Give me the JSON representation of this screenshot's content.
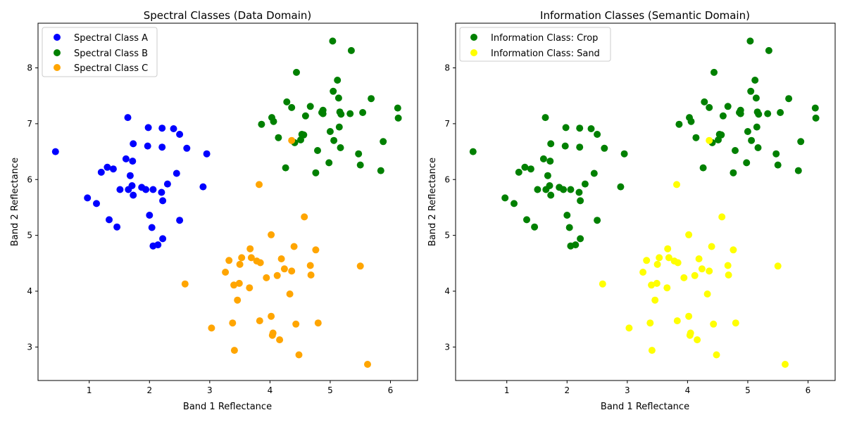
{
  "chart_data": [
    {
      "type": "scatter",
      "title": "Spectral Classes (Data Domain)",
      "xlabel": "Band 1 Reflectance",
      "ylabel": "Band 2 Reflectance",
      "xlim": [
        0.15,
        6.45
      ],
      "ylim": [
        2.4,
        8.8
      ],
      "xticks": [
        1,
        2,
        3,
        4,
        5,
        6
      ],
      "yticks": [
        3,
        4,
        5,
        6,
        7,
        8
      ],
      "grid": false,
      "legend_position": "top-left",
      "series": [
        {
          "name": "Spectral Class A",
          "color": "#0000ff",
          "points": [
            [
              0.44,
              6.5
            ],
            [
              0.97,
              5.67
            ],
            [
              1.12,
              5.57
            ],
            [
              1.2,
              6.13
            ],
            [
              1.3,
              6.22
            ],
            [
              1.33,
              5.28
            ],
            [
              1.4,
              6.19
            ],
            [
              1.46,
              5.15
            ],
            [
              1.51,
              5.82
            ],
            [
              1.61,
              6.37
            ],
            [
              1.64,
              7.11
            ],
            [
              1.65,
              5.82
            ],
            [
              1.68,
              6.07
            ],
            [
              1.71,
              5.89
            ],
            [
              1.72,
              6.33
            ],
            [
              1.73,
              6.64
            ],
            [
              1.73,
              5.72
            ],
            [
              1.87,
              5.86
            ],
            [
              1.94,
              5.82
            ],
            [
              1.97,
              6.6
            ],
            [
              1.98,
              6.93
            ],
            [
              2.0,
              5.36
            ],
            [
              2.04,
              5.14
            ],
            [
              2.06,
              5.82
            ],
            [
              2.06,
              4.81
            ],
            [
              2.14,
              4.83
            ],
            [
              2.2,
              5.77
            ],
            [
              2.21,
              6.58
            ],
            [
              2.21,
              6.92
            ],
            [
              2.22,
              4.94
            ],
            [
              2.22,
              5.62
            ],
            [
              2.3,
              5.92
            ],
            [
              2.4,
              6.91
            ],
            [
              2.45,
              6.11
            ],
            [
              2.5,
              5.27
            ],
            [
              2.5,
              6.81
            ],
            [
              2.62,
              6.56
            ],
            [
              2.89,
              5.87
            ],
            [
              2.95,
              6.46
            ]
          ]
        },
        {
          "name": "Spectral Class B",
          "color": "#008000",
          "points": [
            [
              3.86,
              6.99
            ],
            [
              4.03,
              7.11
            ],
            [
              4.06,
              7.04
            ],
            [
              4.14,
              6.75
            ],
            [
              4.26,
              6.21
            ],
            [
              4.28,
              7.39
            ],
            [
              4.36,
              7.29
            ],
            [
              4.41,
              6.66
            ],
            [
              4.44,
              7.92
            ],
            [
              4.51,
              6.71
            ],
            [
              4.53,
              6.81
            ],
            [
              4.56,
              6.8
            ],
            [
              4.59,
              7.14
            ],
            [
              4.67,
              7.31
            ],
            [
              4.76,
              6.12
            ],
            [
              4.79,
              6.52
            ],
            [
              4.86,
              7.2
            ],
            [
              4.88,
              7.24
            ],
            [
              4.88,
              7.18
            ],
            [
              4.98,
              6.3
            ],
            [
              5.0,
              6.86
            ],
            [
              5.04,
              8.48
            ],
            [
              5.05,
              7.58
            ],
            [
              5.06,
              6.7
            ],
            [
              5.12,
              7.78
            ],
            [
              5.14,
              7.46
            ],
            [
              5.15,
              6.94
            ],
            [
              5.16,
              7.21
            ],
            [
              5.17,
              6.57
            ],
            [
              5.18,
              7.17
            ],
            [
              5.33,
              7.18
            ],
            [
              5.35,
              8.31
            ],
            [
              5.47,
              6.46
            ],
            [
              5.5,
              6.26
            ],
            [
              5.54,
              7.2
            ],
            [
              5.68,
              7.45
            ],
            [
              5.84,
              6.16
            ],
            [
              5.88,
              6.68
            ],
            [
              6.12,
              7.28
            ],
            [
              6.13,
              7.1
            ]
          ]
        },
        {
          "name": "Spectral Class C",
          "color": "#ffa500",
          "points": [
            [
              2.59,
              4.13
            ],
            [
              3.03,
              3.34
            ],
            [
              3.26,
              4.34
            ],
            [
              3.32,
              4.55
            ],
            [
              3.38,
              3.43
            ],
            [
              3.4,
              4.11
            ],
            [
              3.41,
              2.94
            ],
            [
              3.46,
              3.84
            ],
            [
              3.49,
              4.14
            ],
            [
              3.5,
              4.48
            ],
            [
              3.53,
              4.6
            ],
            [
              3.66,
              4.06
            ],
            [
              3.67,
              4.76
            ],
            [
              3.69,
              4.6
            ],
            [
              3.78,
              4.54
            ],
            [
              3.82,
              5.91
            ],
            [
              3.83,
              3.47
            ],
            [
              3.84,
              4.51
            ],
            [
              3.94,
              4.24
            ],
            [
              4.02,
              3.55
            ],
            [
              4.02,
              5.01
            ],
            [
              4.04,
              3.21
            ],
            [
              4.05,
              3.25
            ],
            [
              4.12,
              4.28
            ],
            [
              4.16,
              3.13
            ],
            [
              4.19,
              4.58
            ],
            [
              4.24,
              4.4
            ],
            [
              4.33,
              3.95
            ],
            [
              4.36,
              6.7
            ],
            [
              4.36,
              4.36
            ],
            [
              4.4,
              4.8
            ],
            [
              4.43,
              3.41
            ],
            [
              4.48,
              2.86
            ],
            [
              4.57,
              5.33
            ],
            [
              4.67,
              4.46
            ],
            [
              4.68,
              4.29
            ],
            [
              4.76,
              4.74
            ],
            [
              4.8,
              3.43
            ],
            [
              5.5,
              4.45
            ],
            [
              5.62,
              2.69
            ]
          ]
        }
      ]
    },
    {
      "type": "scatter",
      "title": "Information Classes (Semantic Domain)",
      "xlabel": "Band 1 Reflectance",
      "ylabel": "Band 2 Reflectance",
      "xlim": [
        0.15,
        6.45
      ],
      "ylim": [
        2.4,
        8.8
      ],
      "xticks": [
        1,
        2,
        3,
        4,
        5,
        6
      ],
      "yticks": [
        3,
        4,
        5,
        6,
        7,
        8
      ],
      "grid": false,
      "legend_position": "top-left",
      "series": [
        {
          "name": "Information Class: Crop",
          "color": "#008000",
          "points": [
            [
              0.44,
              6.5
            ],
            [
              0.97,
              5.67
            ],
            [
              1.12,
              5.57
            ],
            [
              1.2,
              6.13
            ],
            [
              1.3,
              6.22
            ],
            [
              1.33,
              5.28
            ],
            [
              1.4,
              6.19
            ],
            [
              1.46,
              5.15
            ],
            [
              1.51,
              5.82
            ],
            [
              1.61,
              6.37
            ],
            [
              1.64,
              7.11
            ],
            [
              1.65,
              5.82
            ],
            [
              1.68,
              6.07
            ],
            [
              1.71,
              5.89
            ],
            [
              1.72,
              6.33
            ],
            [
              1.73,
              6.64
            ],
            [
              1.73,
              5.72
            ],
            [
              1.87,
              5.86
            ],
            [
              1.94,
              5.82
            ],
            [
              1.97,
              6.6
            ],
            [
              1.98,
              6.93
            ],
            [
              2.0,
              5.36
            ],
            [
              2.04,
              5.14
            ],
            [
              2.06,
              5.82
            ],
            [
              2.06,
              4.81
            ],
            [
              2.14,
              4.83
            ],
            [
              2.2,
              5.77
            ],
            [
              2.21,
              6.58
            ],
            [
              2.21,
              6.92
            ],
            [
              2.22,
              4.94
            ],
            [
              2.22,
              5.62
            ],
            [
              2.3,
              5.92
            ],
            [
              2.4,
              6.91
            ],
            [
              2.45,
              6.11
            ],
            [
              2.5,
              5.27
            ],
            [
              2.5,
              6.81
            ],
            [
              2.62,
              6.56
            ],
            [
              2.89,
              5.87
            ],
            [
              2.95,
              6.46
            ],
            [
              3.86,
              6.99
            ],
            [
              4.03,
              7.11
            ],
            [
              4.06,
              7.04
            ],
            [
              4.14,
              6.75
            ],
            [
              4.26,
              6.21
            ],
            [
              4.28,
              7.39
            ],
            [
              4.36,
              7.29
            ],
            [
              4.41,
              6.66
            ],
            [
              4.44,
              7.92
            ],
            [
              4.51,
              6.71
            ],
            [
              4.53,
              6.81
            ],
            [
              4.56,
              6.8
            ],
            [
              4.59,
              7.14
            ],
            [
              4.67,
              7.31
            ],
            [
              4.76,
              6.12
            ],
            [
              4.79,
              6.52
            ],
            [
              4.86,
              7.2
            ],
            [
              4.88,
              7.24
            ],
            [
              4.88,
              7.18
            ],
            [
              4.98,
              6.3
            ],
            [
              5.0,
              6.86
            ],
            [
              5.04,
              8.48
            ],
            [
              5.05,
              7.58
            ],
            [
              5.06,
              6.7
            ],
            [
              5.12,
              7.78
            ],
            [
              5.14,
              7.46
            ],
            [
              5.15,
              6.94
            ],
            [
              5.16,
              7.21
            ],
            [
              5.17,
              6.57
            ],
            [
              5.18,
              7.17
            ],
            [
              5.33,
              7.18
            ],
            [
              5.35,
              8.31
            ],
            [
              5.47,
              6.46
            ],
            [
              5.5,
              6.26
            ],
            [
              5.54,
              7.2
            ],
            [
              5.68,
              7.45
            ],
            [
              5.84,
              6.16
            ],
            [
              5.88,
              6.68
            ],
            [
              6.12,
              7.28
            ],
            [
              6.13,
              7.1
            ]
          ]
        },
        {
          "name": "Information Class: Sand",
          "color": "#ffff00",
          "points": [
            [
              2.59,
              4.13
            ],
            [
              3.03,
              3.34
            ],
            [
              3.26,
              4.34
            ],
            [
              3.32,
              4.55
            ],
            [
              3.38,
              3.43
            ],
            [
              3.4,
              4.11
            ],
            [
              3.41,
              2.94
            ],
            [
              3.46,
              3.84
            ],
            [
              3.49,
              4.14
            ],
            [
              3.5,
              4.48
            ],
            [
              3.53,
              4.6
            ],
            [
              3.66,
              4.06
            ],
            [
              3.67,
              4.76
            ],
            [
              3.69,
              4.6
            ],
            [
              3.78,
              4.54
            ],
            [
              3.82,
              5.91
            ],
            [
              3.83,
              3.47
            ],
            [
              3.84,
              4.51
            ],
            [
              3.94,
              4.24
            ],
            [
              4.02,
              3.55
            ],
            [
              4.02,
              5.01
            ],
            [
              4.04,
              3.21
            ],
            [
              4.05,
              3.25
            ],
            [
              4.12,
              4.28
            ],
            [
              4.16,
              3.13
            ],
            [
              4.19,
              4.58
            ],
            [
              4.24,
              4.4
            ],
            [
              4.33,
              3.95
            ],
            [
              4.36,
              6.7
            ],
            [
              4.36,
              4.36
            ],
            [
              4.4,
              4.8
            ],
            [
              4.43,
              3.41
            ],
            [
              4.48,
              2.86
            ],
            [
              4.57,
              5.33
            ],
            [
              4.67,
              4.46
            ],
            [
              4.68,
              4.29
            ],
            [
              4.76,
              4.74
            ],
            [
              4.8,
              3.43
            ],
            [
              5.5,
              4.45
            ],
            [
              5.62,
              2.69
            ]
          ]
        }
      ]
    }
  ]
}
